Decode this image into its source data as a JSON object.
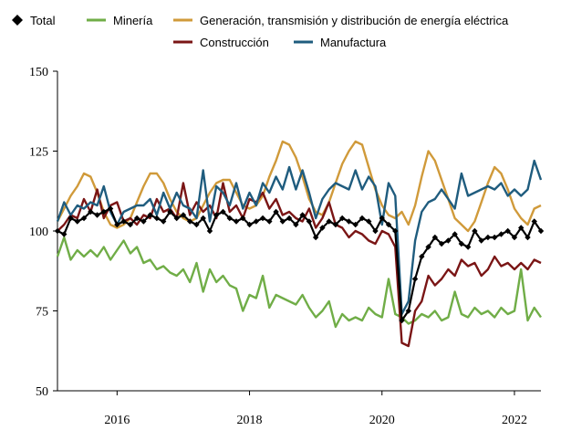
{
  "chart_data": {
    "type": "line",
    "title": "",
    "xlabel": "",
    "ylabel": "",
    "ylim": [
      50,
      150
    ],
    "xlim": [
      2015.1,
      2022.4
    ],
    "yticks": [
      50,
      75,
      100,
      125,
      150
    ],
    "xticks": [
      2016,
      2018,
      2020,
      2022
    ],
    "legend_position": "top",
    "series": [
      {
        "name": "Total",
        "color": "#000000",
        "marker": "diamond",
        "x": [
          2015.1,
          2015.2,
          2015.3,
          2015.4,
          2015.5,
          2015.6,
          2015.7,
          2015.8,
          2015.9,
          2016.0,
          2016.1,
          2016.2,
          2016.3,
          2016.4,
          2016.5,
          2016.6,
          2016.7,
          2016.8,
          2016.9,
          2017.0,
          2017.1,
          2017.2,
          2017.3,
          2017.4,
          2017.5,
          2017.6,
          2017.7,
          2017.8,
          2017.9,
          2018.0,
          2018.1,
          2018.2,
          2018.3,
          2018.4,
          2018.5,
          2018.6,
          2018.7,
          2018.8,
          2018.9,
          2019.0,
          2019.1,
          2019.2,
          2019.3,
          2019.4,
          2019.5,
          2019.6,
          2019.7,
          2019.8,
          2019.9,
          2020.0,
          2020.1,
          2020.2,
          2020.3,
          2020.4,
          2020.5,
          2020.6,
          2020.7,
          2020.8,
          2020.9,
          2021.0,
          2021.1,
          2021.2,
          2021.3,
          2021.4,
          2021.5,
          2021.6,
          2021.7,
          2021.8,
          2021.9,
          2022.0,
          2022.1,
          2022.2,
          2022.3,
          2022.4
        ],
        "values": [
          100,
          99,
          104,
          103,
          104,
          106,
          105,
          106,
          107,
          102,
          103,
          102,
          104,
          103,
          105,
          104,
          103,
          106,
          104,
          105,
          103,
          102,
          104,
          100,
          105,
          106,
          104,
          103,
          104,
          102,
          103,
          104,
          103,
          106,
          103,
          104,
          102,
          105,
          103,
          98,
          101,
          103,
          102,
          104,
          103,
          102,
          104,
          103,
          100,
          104,
          102,
          100,
          72,
          75,
          85,
          92,
          95,
          98,
          96,
          97,
          99,
          96,
          95,
          100,
          97,
          98,
          98,
          99,
          100,
          98,
          101,
          98,
          103,
          100
        ]
      },
      {
        "name": "Minería",
        "color": "#70ad47",
        "x": [
          2015.1,
          2015.2,
          2015.3,
          2015.4,
          2015.5,
          2015.6,
          2015.7,
          2015.8,
          2015.9,
          2016.0,
          2016.1,
          2016.2,
          2016.3,
          2016.4,
          2016.5,
          2016.6,
          2016.7,
          2016.8,
          2016.9,
          2017.0,
          2017.1,
          2017.2,
          2017.3,
          2017.4,
          2017.5,
          2017.6,
          2017.7,
          2017.8,
          2017.9,
          2018.0,
          2018.1,
          2018.2,
          2018.3,
          2018.4,
          2018.5,
          2018.6,
          2018.7,
          2018.8,
          2018.9,
          2019.0,
          2019.1,
          2019.2,
          2019.3,
          2019.4,
          2019.5,
          2019.6,
          2019.7,
          2019.8,
          2019.9,
          2020.0,
          2020.1,
          2020.2,
          2020.3,
          2020.4,
          2020.5,
          2020.6,
          2020.7,
          2020.8,
          2020.9,
          2021.0,
          2021.1,
          2021.2,
          2021.3,
          2021.4,
          2021.5,
          2021.6,
          2021.7,
          2021.8,
          2021.9,
          2022.0,
          2022.1,
          2022.2,
          2022.3,
          2022.4
        ],
        "values": [
          92,
          98,
          91,
          94,
          92,
          94,
          92,
          95,
          91,
          94,
          97,
          93,
          95,
          90,
          91,
          88,
          89,
          87,
          86,
          88,
          84,
          90,
          81,
          88,
          84,
          86,
          83,
          82,
          75,
          80,
          79,
          86,
          76,
          80,
          79,
          78,
          77,
          80,
          76,
          73,
          75,
          78,
          70,
          74,
          72,
          73,
          72,
          76,
          74,
          73,
          85,
          74,
          73,
          71,
          72,
          74,
          73,
          75,
          72,
          73,
          81,
          74,
          73,
          76,
          74,
          75,
          73,
          76,
          74,
          75,
          88,
          72,
          76,
          73
        ]
      },
      {
        "name": "Generación, transmisión y distribución de energía eléctrica",
        "color": "#d09a3a",
        "x": [
          2015.1,
          2015.2,
          2015.3,
          2015.4,
          2015.5,
          2015.6,
          2015.7,
          2015.8,
          2015.9,
          2016.0,
          2016.1,
          2016.2,
          2016.3,
          2016.4,
          2016.5,
          2016.6,
          2016.7,
          2016.8,
          2016.9,
          2017.0,
          2017.1,
          2017.2,
          2017.3,
          2017.4,
          2017.5,
          2017.6,
          2017.7,
          2017.8,
          2017.9,
          2018.0,
          2018.1,
          2018.2,
          2018.3,
          2018.4,
          2018.5,
          2018.6,
          2018.7,
          2018.8,
          2018.9,
          2019.0,
          2019.1,
          2019.2,
          2019.3,
          2019.4,
          2019.5,
          2019.6,
          2019.7,
          2019.8,
          2019.9,
          2020.0,
          2020.1,
          2020.2,
          2020.3,
          2020.4,
          2020.5,
          2020.6,
          2020.7,
          2020.8,
          2020.9,
          2021.0,
          2021.1,
          2021.2,
          2021.3,
          2021.4,
          2021.5,
          2021.6,
          2021.7,
          2021.8,
          2021.9,
          2022.0,
          2022.1,
          2022.2,
          2022.3,
          2022.4
        ],
        "values": [
          103,
          107,
          111,
          114,
          118,
          117,
          112,
          106,
          102,
          101,
          102,
          104,
          109,
          114,
          118,
          118,
          115,
          110,
          106,
          104,
          103,
          104,
          108,
          112,
          115,
          116,
          116,
          112,
          108,
          107,
          108,
          111,
          117,
          122,
          128,
          127,
          123,
          117,
          110,
          106,
          105,
          109,
          115,
          121,
          125,
          128,
          127,
          120,
          113,
          108,
          105,
          104,
          106,
          102,
          108,
          117,
          125,
          122,
          116,
          110,
          104,
          102,
          100,
          103,
          109,
          115,
          120,
          118,
          113,
          107,
          104,
          102,
          107,
          108
        ]
      },
      {
        "name": "Construcción",
        "color": "#7a1515",
        "x": [
          2015.1,
          2015.2,
          2015.3,
          2015.4,
          2015.5,
          2015.6,
          2015.7,
          2015.8,
          2015.9,
          2016.0,
          2016.1,
          2016.2,
          2016.3,
          2016.4,
          2016.5,
          2016.6,
          2016.7,
          2016.8,
          2016.9,
          2017.0,
          2017.1,
          2017.2,
          2017.3,
          2017.4,
          2017.5,
          2017.6,
          2017.7,
          2017.8,
          2017.9,
          2018.0,
          2018.1,
          2018.2,
          2018.3,
          2018.4,
          2018.5,
          2018.6,
          2018.7,
          2018.8,
          2018.9,
          2019.0,
          2019.1,
          2019.2,
          2019.3,
          2019.4,
          2019.5,
          2019.6,
          2019.7,
          2019.8,
          2019.9,
          2020.0,
          2020.1,
          2020.2,
          2020.3,
          2020.4,
          2020.5,
          2020.6,
          2020.7,
          2020.8,
          2020.9,
          2021.0,
          2021.1,
          2021.2,
          2021.3,
          2021.4,
          2021.5,
          2021.6,
          2021.7,
          2021.8,
          2021.9,
          2022.0,
          2022.1,
          2022.2,
          2022.3,
          2022.4
        ],
        "values": [
          100,
          102,
          105,
          104,
          110,
          106,
          113,
          104,
          108,
          109,
          103,
          104,
          102,
          105,
          104,
          110,
          106,
          107,
          104,
          115,
          105,
          109,
          106,
          108,
          104,
          115,
          106,
          108,
          104,
          110,
          109,
          112,
          107,
          110,
          105,
          106,
          104,
          103,
          107,
          101,
          104,
          109,
          102,
          101,
          98,
          100,
          99,
          97,
          96,
          100,
          99,
          95,
          65,
          64,
          75,
          78,
          86,
          83,
          85,
          88,
          86,
          91,
          89,
          90,
          86,
          88,
          92,
          89,
          90,
          88,
          90,
          88,
          91,
          90
        ]
      },
      {
        "name": "Manufactura",
        "color": "#1f5c7e",
        "x": [
          2015.1,
          2015.2,
          2015.3,
          2015.4,
          2015.5,
          2015.6,
          2015.7,
          2015.8,
          2015.9,
          2016.0,
          2016.1,
          2016.2,
          2016.3,
          2016.4,
          2016.5,
          2016.6,
          2016.7,
          2016.8,
          2016.9,
          2017.0,
          2017.1,
          2017.2,
          2017.3,
          2017.4,
          2017.5,
          2017.6,
          2017.7,
          2017.8,
          2017.9,
          2018.0,
          2018.1,
          2018.2,
          2018.3,
          2018.4,
          2018.5,
          2018.6,
          2018.7,
          2018.8,
          2018.9,
          2019.0,
          2019.1,
          2019.2,
          2019.3,
          2019.4,
          2019.5,
          2019.6,
          2019.7,
          2019.8,
          2019.9,
          2020.0,
          2020.1,
          2020.2,
          2020.3,
          2020.4,
          2020.5,
          2020.6,
          2020.7,
          2020.8,
          2020.9,
          2021.0,
          2021.1,
          2021.2,
          2021.3,
          2021.4,
          2021.5,
          2021.6,
          2021.7,
          2021.8,
          2021.9,
          2022.0,
          2022.1,
          2022.2,
          2022.3,
          2022.4
        ],
        "values": [
          103,
          109,
          105,
          108,
          107,
          109,
          108,
          114,
          106,
          102,
          106,
          107,
          108,
          108,
          110,
          105,
          112,
          107,
          112,
          108,
          107,
          104,
          119,
          103,
          114,
          112,
          108,
          115,
          107,
          112,
          108,
          115,
          112,
          117,
          113,
          120,
          113,
          119,
          112,
          104,
          110,
          113,
          115,
          114,
          113,
          119,
          113,
          117,
          114,
          102,
          115,
          111,
          74,
          78,
          97,
          106,
          109,
          110,
          113,
          110,
          107,
          118,
          111,
          112,
          113,
          114,
          113,
          115,
          111,
          113,
          111,
          113,
          122,
          116
        ]
      }
    ]
  }
}
